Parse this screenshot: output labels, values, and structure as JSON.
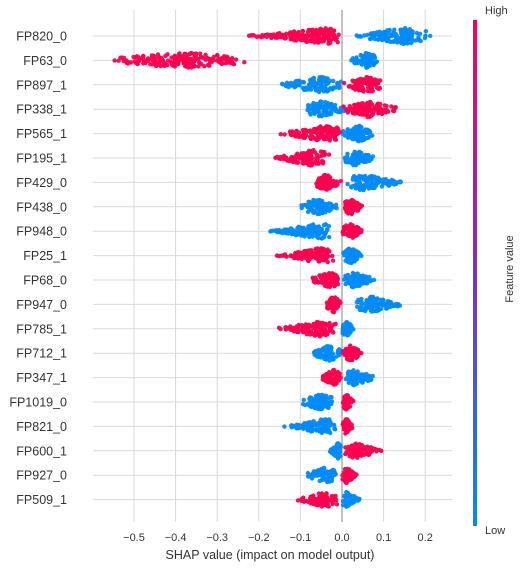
{
  "chart_data": {
    "type": "scatter",
    "subtype": "shap-beeswarm",
    "xlabel": "SHAP value (impact on model output)",
    "ylabel": "",
    "xlim": [
      -0.6,
      0.27
    ],
    "xticks": [
      -0.5,
      -0.4,
      -0.3,
      -0.2,
      -0.1,
      0.0,
      0.1,
      0.2
    ],
    "xtick_labels": [
      "−0.5",
      "−0.4",
      "−0.3",
      "−0.2",
      "−0.1",
      "0.0",
      "0.1",
      "0.2"
    ],
    "grid": true,
    "colorbar": {
      "title": "Feature value",
      "high_label": "High",
      "low_label": "Low",
      "high_color": "#ff0051",
      "mid_color": "#7b2fd0",
      "low_color": "#008bfb"
    },
    "features": [
      {
        "name": "FP820_0",
        "low_range": [
          0.02,
          0.22
        ],
        "low_center": 0.15,
        "high_range": [
          -0.24,
          0.0
        ],
        "high_center": -0.04
      },
      {
        "name": "FP63_0",
        "low_range": [
          0.02,
          0.09
        ],
        "low_center": 0.06,
        "high_range": [
          -0.56,
          -0.22
        ],
        "high_center": -0.38
      },
      {
        "name": "FP897_1",
        "low_range": [
          -0.16,
          0.0
        ],
        "low_center": -0.05,
        "high_range": [
          0.0,
          0.1
        ],
        "high_center": 0.06
      },
      {
        "name": "FP338_1",
        "low_range": [
          -0.09,
          0.02
        ],
        "low_center": -0.05,
        "high_range": [
          0.0,
          0.14
        ],
        "high_center": 0.06
      },
      {
        "name": "FP565_1",
        "low_range": [
          0.0,
          0.08
        ],
        "low_center": 0.04,
        "high_range": [
          -0.16,
          0.0
        ],
        "high_center": -0.04
      },
      {
        "name": "FP195_1",
        "low_range": [
          0.0,
          0.08
        ],
        "low_center": 0.03,
        "high_range": [
          -0.17,
          -0.03
        ],
        "high_center": -0.07
      },
      {
        "name": "FP429_0",
        "low_range": [
          0.01,
          0.16
        ],
        "low_center": 0.05,
        "high_range": [
          -0.07,
          0.0
        ],
        "high_center": -0.04
      },
      {
        "name": "FP438_0",
        "low_range": [
          -0.1,
          -0.01
        ],
        "low_center": -0.06,
        "high_range": [
          0.0,
          0.05
        ],
        "high_center": 0.02
      },
      {
        "name": "FP948_0",
        "low_range": [
          -0.19,
          -0.02
        ],
        "low_center": -0.05,
        "high_range": [
          0.0,
          0.05
        ],
        "high_center": 0.02
      },
      {
        "name": "FP25_1",
        "low_range": [
          0.0,
          0.05
        ],
        "low_center": 0.02,
        "high_range": [
          -0.16,
          -0.02
        ],
        "high_center": -0.05
      },
      {
        "name": "FP68_0",
        "low_range": [
          0.0,
          0.08
        ],
        "low_center": 0.03,
        "high_range": [
          -0.08,
          0.0
        ],
        "high_center": -0.03
      },
      {
        "name": "FP947_0",
        "low_range": [
          0.03,
          0.15
        ],
        "low_center": 0.07,
        "high_range": [
          -0.04,
          0.0
        ],
        "high_center": -0.02
      },
      {
        "name": "FP785_1",
        "low_range": [
          0.0,
          0.03
        ],
        "low_center": 0.01,
        "high_range": [
          -0.16,
          -0.01
        ],
        "high_center": -0.05
      },
      {
        "name": "FP712_1",
        "low_range": [
          -0.07,
          0.0
        ],
        "low_center": -0.03,
        "high_range": [
          0.0,
          0.05
        ],
        "high_center": 0.02
      },
      {
        "name": "FP347_1",
        "low_range": [
          0.0,
          0.08
        ],
        "low_center": 0.03,
        "high_range": [
          -0.05,
          0.0
        ],
        "high_center": -0.02
      },
      {
        "name": "FP1019_0",
        "low_range": [
          -0.1,
          -0.01
        ],
        "low_center": -0.05,
        "high_range": [
          0.0,
          0.03
        ],
        "high_center": 0.01
      },
      {
        "name": "FP821_0",
        "low_range": [
          -0.14,
          -0.01
        ],
        "low_center": -0.04,
        "high_range": [
          0.0,
          0.03
        ],
        "high_center": 0.01
      },
      {
        "name": "FP600_1",
        "low_range": [
          -0.03,
          0.0
        ],
        "low_center": -0.01,
        "high_range": [
          0.0,
          0.1
        ],
        "high_center": 0.03
      },
      {
        "name": "FP927_0",
        "low_range": [
          -0.09,
          -0.01
        ],
        "low_center": -0.04,
        "high_range": [
          0.0,
          0.04
        ],
        "high_center": 0.01
      },
      {
        "name": "FP509_1",
        "low_range": [
          0.0,
          0.05
        ],
        "low_center": 0.01,
        "high_range": [
          -0.11,
          -0.01
        ],
        "high_center": -0.04
      }
    ]
  }
}
